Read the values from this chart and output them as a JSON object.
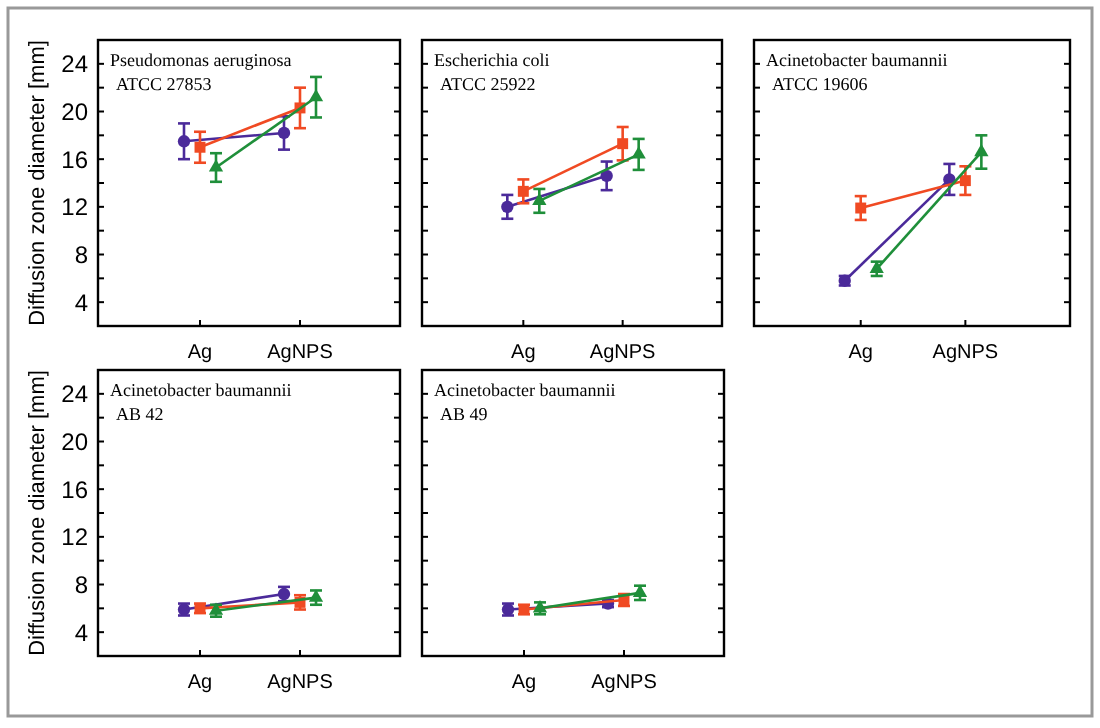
{
  "chart_data": [
    {
      "type": "line",
      "title": "Pseudomonas aeruginosa",
      "subtitle": "ATCC 27853",
      "ylabel": "Diffusion zone diameter [mm]",
      "categories": [
        "Ag",
        "AgNPS"
      ],
      "ylim": [
        2,
        26
      ],
      "yticks": [
        4,
        {
          "value": 6,
          "label": null
        },
        8,
        {
          "value": 10,
          "label": null
        },
        12,
        {
          "value": 14,
          "label": null
        },
        16,
        {
          "value": 18,
          "label": null
        },
        20,
        {
          "value": 22,
          "label": null
        },
        24
      ],
      "grid": false,
      "series": [
        {
          "color": "#4b2a9a",
          "marker": "circle",
          "values": [
            17.5,
            18.2
          ],
          "errors": [
            1.5,
            1.4
          ]
        },
        {
          "color": "#f04a23",
          "marker": "square",
          "values": [
            17.0,
            20.3
          ],
          "errors": [
            1.3,
            1.7
          ]
        },
        {
          "color": "#1f8f3a",
          "marker": "triangle",
          "values": [
            15.3,
            21.2
          ],
          "errors": [
            1.2,
            1.7
          ]
        }
      ]
    },
    {
      "type": "line",
      "title": "Escherichia coli",
      "subtitle": "ATCC 25922",
      "categories": [
        "Ag",
        "AgNPS"
      ],
      "ylim": [
        2,
        26
      ],
      "yticks": [
        4,
        {
          "value": 6,
          "label": null
        },
        8,
        {
          "value": 10,
          "label": null
        },
        12,
        {
          "value": 14,
          "label": null
        },
        16,
        {
          "value": 18,
          "label": null
        },
        20,
        {
          "value": 22,
          "label": null
        },
        24
      ],
      "tick_labels": "x",
      "grid": false,
      "series": [
        {
          "color": "#4b2a9a",
          "marker": "circle",
          "values": [
            12.0,
            14.6
          ],
          "errors": [
            1.0,
            1.2
          ]
        },
        {
          "color": "#f04a23",
          "marker": "square",
          "values": [
            13.3,
            17.3
          ],
          "errors": [
            1.0,
            1.4
          ]
        },
        {
          "color": "#1f8f3a",
          "marker": "triangle",
          "values": [
            12.5,
            16.4
          ],
          "errors": [
            1.0,
            1.3
          ]
        }
      ]
    },
    {
      "type": "line",
      "title": "Acinetobacter baumannii",
      "subtitle": "ATCC 19606",
      "categories": [
        "Ag",
        "AgNPS"
      ],
      "ylim": [
        2,
        26
      ],
      "yticks": [
        4,
        {
          "value": 6,
          "label": null
        },
        8,
        {
          "value": 10,
          "label": null
        },
        12,
        {
          "value": 14,
          "label": null
        },
        16,
        {
          "value": 18,
          "label": null
        },
        20,
        {
          "value": 22,
          "label": null
        },
        24
      ],
      "tick_labels": "x",
      "grid": false,
      "series": [
        {
          "color": "#4b2a9a",
          "marker": "circle",
          "values": [
            5.8,
            14.3
          ],
          "errors": [
            0.4,
            1.3
          ]
        },
        {
          "color": "#f04a23",
          "marker": "square",
          "values": [
            11.9,
            14.2
          ],
          "errors": [
            1.0,
            1.2
          ]
        },
        {
          "color": "#1f8f3a",
          "marker": "triangle",
          "values": [
            6.8,
            16.6
          ],
          "errors": [
            0.6,
            1.4
          ]
        }
      ]
    },
    {
      "type": "line",
      "title": "Acinetobacter baumannii",
      "subtitle": "AB 42",
      "ylabel": "Diffusion zone diameter [mm]",
      "categories": [
        "Ag",
        "AgNPS"
      ],
      "ylim": [
        2,
        26
      ],
      "yticks": [
        4,
        {
          "value": 6,
          "label": null
        },
        8,
        {
          "value": 10,
          "label": null
        },
        12,
        {
          "value": 14,
          "label": null
        },
        16,
        {
          "value": 18,
          "label": null
        },
        20,
        {
          "value": 22,
          "label": null
        },
        24
      ],
      "grid": false,
      "series": [
        {
          "color": "#4b2a9a",
          "marker": "circle",
          "values": [
            5.9,
            7.2
          ],
          "errors": [
            0.5,
            0.6
          ]
        },
        {
          "color": "#f04a23",
          "marker": "square",
          "values": [
            6.0,
            6.5
          ],
          "errors": [
            0.4,
            0.6
          ]
        },
        {
          "color": "#1f8f3a",
          "marker": "triangle",
          "values": [
            5.8,
            6.9
          ],
          "errors": [
            0.5,
            0.6
          ]
        }
      ]
    },
    {
      "type": "line",
      "title": "Acinetobacter baumannii",
      "subtitle": "AB 49",
      "categories": [
        "Ag",
        "AgNPS"
      ],
      "ylim": [
        2,
        26
      ],
      "yticks": [
        4,
        {
          "value": 6,
          "label": null
        },
        8,
        {
          "value": 10,
          "label": null
        },
        12,
        {
          "value": 14,
          "label": null
        },
        16,
        {
          "value": 18,
          "label": null
        },
        20,
        {
          "value": 22,
          "label": null
        },
        24
      ],
      "tick_labels": "x",
      "grid": false,
      "series": [
        {
          "color": "#4b2a9a",
          "marker": "circle",
          "values": [
            5.9,
            6.4
          ],
          "errors": [
            0.5,
            0.3
          ]
        },
        {
          "color": "#f04a23",
          "marker": "square",
          "values": [
            5.9,
            6.7
          ],
          "errors": [
            0.4,
            0.5
          ]
        },
        {
          "color": "#1f8f3a",
          "marker": "triangle",
          "values": [
            6.0,
            7.3
          ],
          "errors": [
            0.5,
            0.6
          ]
        }
      ]
    }
  ]
}
